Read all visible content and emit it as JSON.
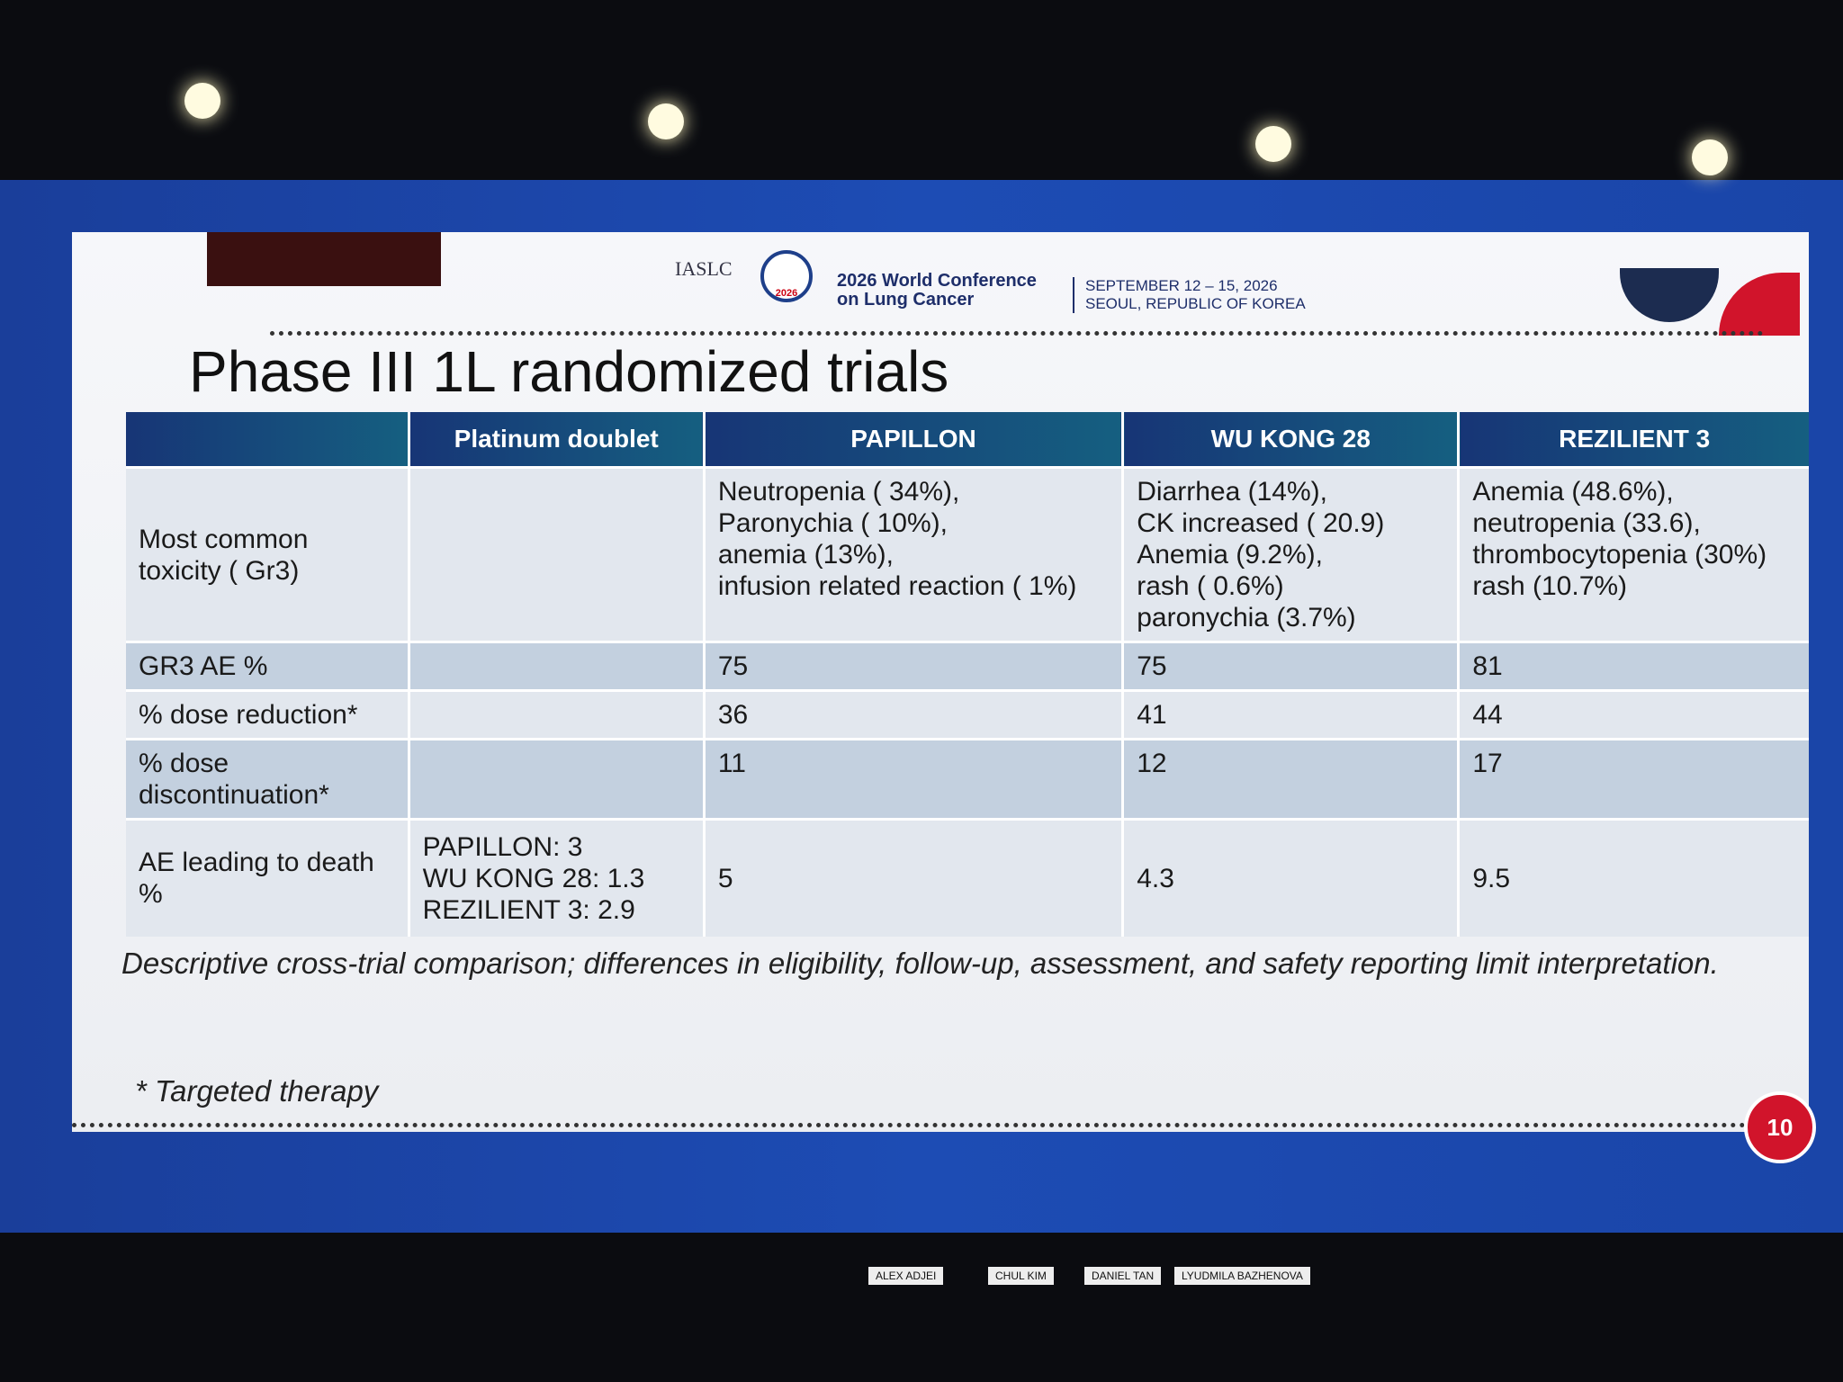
{
  "header": {
    "org": "IASLC",
    "logo_year": "2026",
    "conference": [
      "2026 World Conference",
      "on Lung Cancer"
    ],
    "dates": "SEPTEMBER 12 – 15, 2026",
    "location": "SEOUL, REPUBLIC OF KOREA"
  },
  "title": "Phase III 1L randomized trials",
  "table": {
    "columns": [
      "Platinum doublet",
      "PAPILLON",
      "WU KONG 28",
      "REZILIENT 3"
    ],
    "rows": [
      {
        "label": "Most common toxicity ( Gr3)",
        "papillon": [
          "Neutropenia ( 34%),",
          "Paronychia ( 10%),",
          "anemia (13%),",
          "infusion related reaction ( 1%)"
        ],
        "wu_kong_28": [
          "Diarrhea (14%),",
          "CK increased ( 20.9)",
          "Anemia (9.2%),",
          "rash ( 0.6%)",
          "paronychia (3.7%)"
        ],
        "rezilient_3": [
          "Anemia (48.6%),",
          "neutropenia (33.6),",
          "thrombocytopenia (30%)",
          "rash (10.7%)"
        ]
      },
      {
        "label": "GR3 AE %",
        "papillon": 75,
        "wu_kong_28": 75,
        "rezilient_3": 81
      },
      {
        "label": "% dose reduction*",
        "papillon": 36,
        "wu_kong_28": 41,
        "rezilient_3": 44
      },
      {
        "label": "% dose discontinuation*",
        "papillon": 11,
        "wu_kong_28": 12,
        "rezilient_3": 17
      },
      {
        "label": "AE leading to death %",
        "platinum_doublet": [
          "PAPILLON: 3",
          "WU KONG 28:  1.3",
          "REZILIENT 3: 2.9"
        ],
        "papillon": 5,
        "wu_kong_28": 4.3,
        "rezilient_3": 9.5
      }
    ]
  },
  "note": "Descriptive cross-trial comparison; differences in eligibility, follow-up, assessment, and safety reporting limit interpretation.",
  "footnote": "* Targeted therapy",
  "page_number": 10,
  "speakers": [
    "ALEX ADJEI",
    "CHUL KIM",
    "DANIEL TAN",
    "LYUDMILA BAZHENOVA"
  ]
}
